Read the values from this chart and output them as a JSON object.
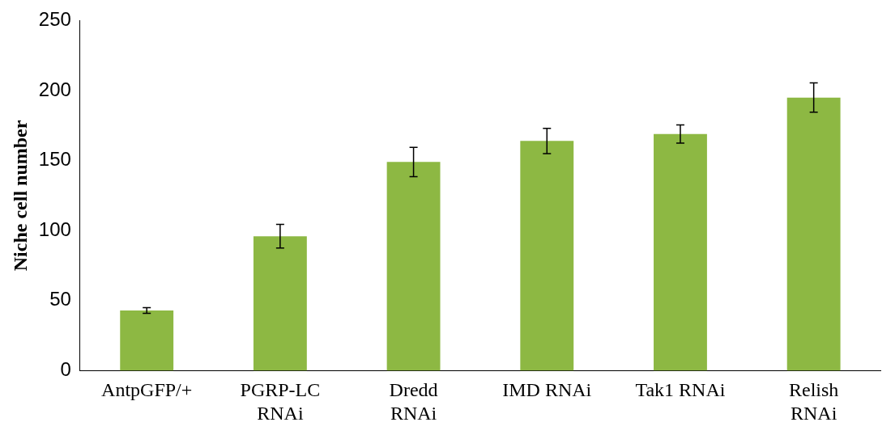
{
  "chart_data": {
    "type": "bar",
    "ylabel": "Niche cell number",
    "categories": [
      "AntpGFP/+",
      "PGRP-LC RNAi",
      "Dredd RNAi",
      "IMD RNAi",
      "Tak1 RNAi",
      "Relish RNAi"
    ],
    "values": [
      43,
      96,
      149,
      164,
      169,
      195
    ],
    "errors": [
      2,
      8.5,
      10.5,
      9,
      6.5,
      10.5
    ],
    "color": "#8db843",
    "ylim": [
      0,
      250
    ],
    "yticks": [
      0,
      50,
      100,
      150,
      200,
      250
    ],
    "grid": false,
    "legend": false
  }
}
